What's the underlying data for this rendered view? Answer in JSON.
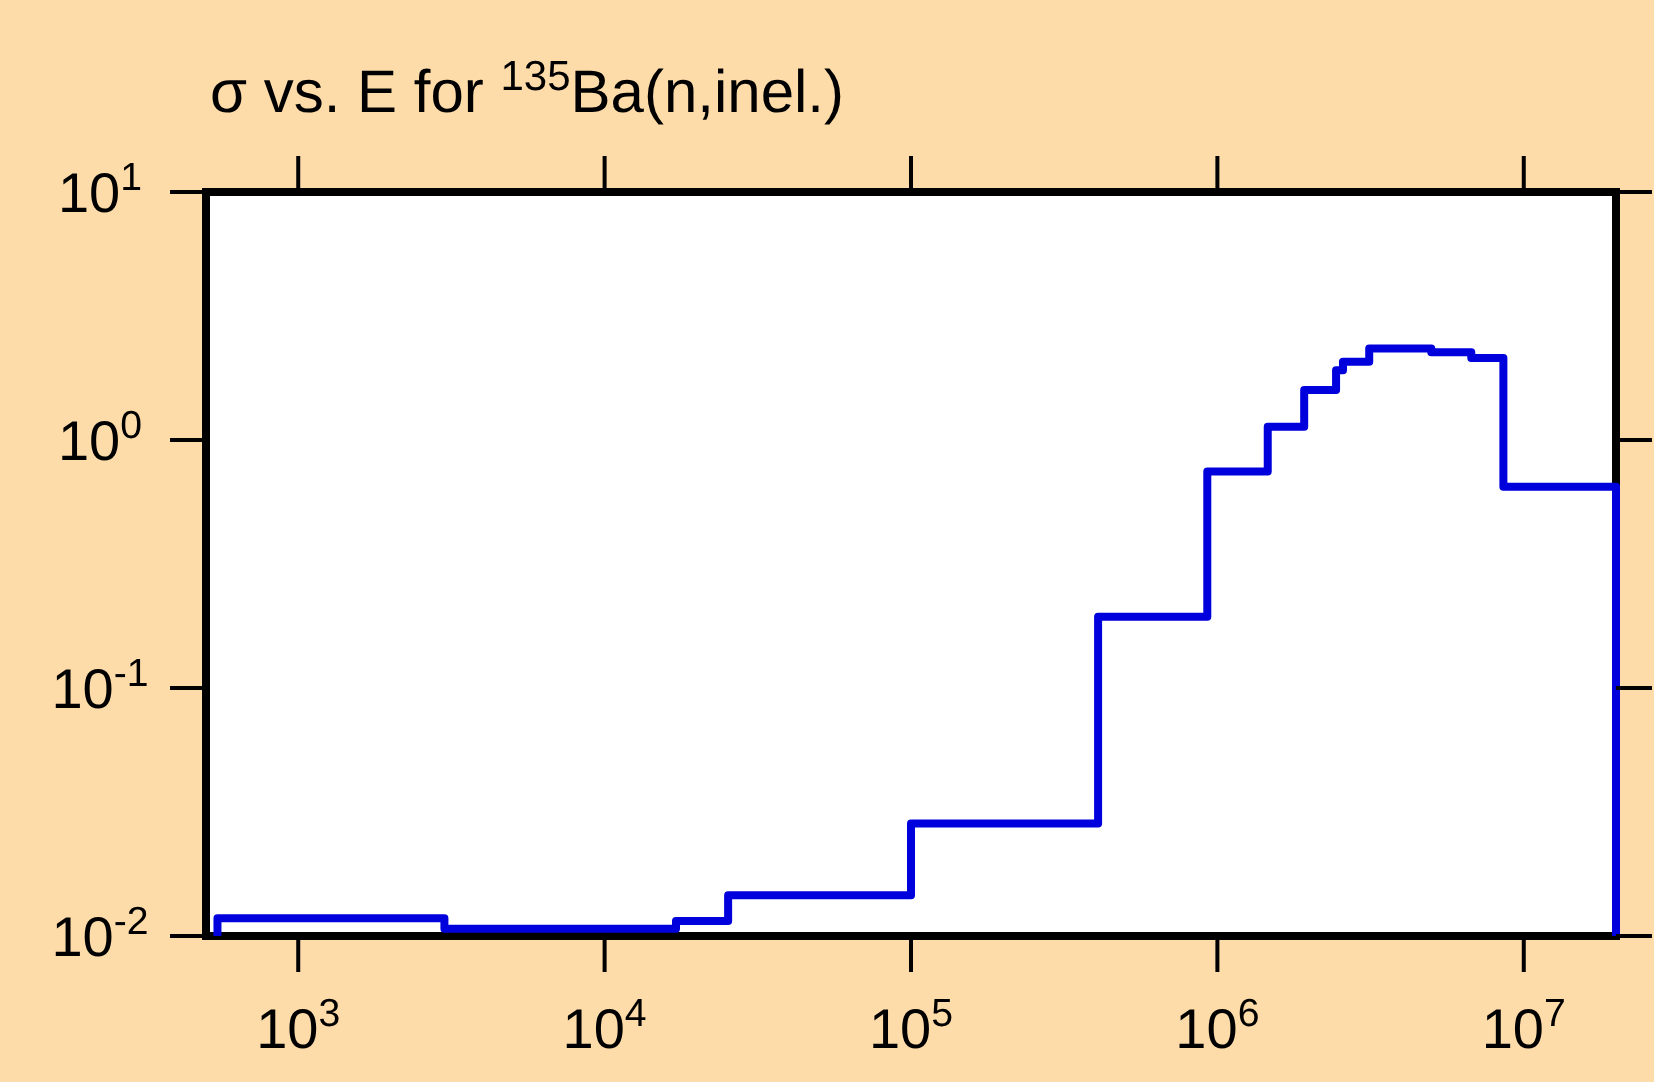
{
  "chart_data": {
    "type": "step",
    "title": "σ vs. E for $^{135}$Ba(n,inel.)",
    "x": [
      545,
      545,
      3000,
      17100,
      25300,
      100000,
      408000,
      927000,
      1460000,
      1920000,
      2440000,
      2570000,
      3130000,
      4990000,
      6740000,
      8580000,
      20000000
    ],
    "series": [
      {
        "color": "#0000dd",
        "values": [
          0.01,
          0.0118,
          0.0107,
          0.0115,
          0.0146,
          0.0284,
          0.194,
          0.746,
          1.13,
          1.59,
          1.91,
          2.07,
          2.34,
          2.26,
          2.14,
          0.648,
          0.01
        ]
      }
    ],
    "log": "xy",
    "xlim": [
      500,
      20000000
    ],
    "ylim": [
      0.01,
      10
    ],
    "xticks": [
      {
        "value": 1000,
        "label": "10$^{3}$"
      },
      {
        "value": 10000,
        "label": "10$^{4}$"
      },
      {
        "value": 100000,
        "label": "10$^{5}$"
      },
      {
        "value": 1000000,
        "label": "10$^{6}$"
      },
      {
        "value": 10000000,
        "label": "10$^{7}$"
      }
    ],
    "yticks": [
      {
        "value": 0.01,
        "label": "10$^{-2}$"
      },
      {
        "value": 0.1,
        "label": "10$^{-1}$"
      },
      {
        "value": 1,
        "label": "10$^{0}$"
      },
      {
        "value": 10,
        "label": "10$^{1}$"
      }
    ],
    "grid": false
  }
}
